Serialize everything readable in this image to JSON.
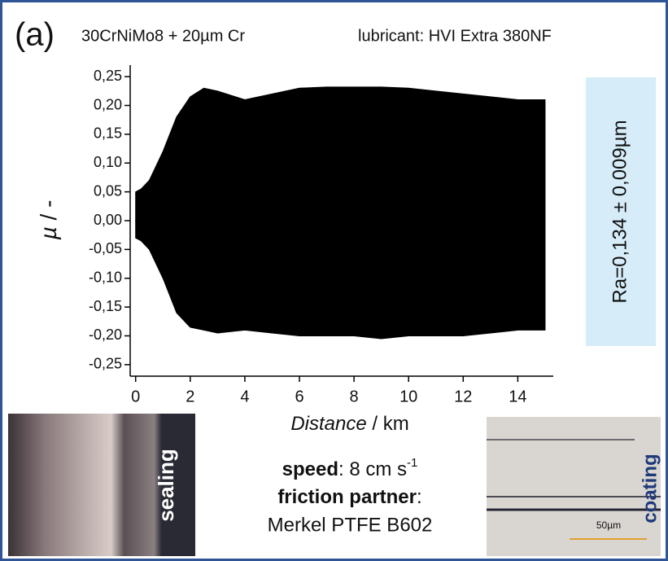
{
  "chart_data": {
    "type": "band",
    "panel_label": "(a)",
    "title": "30CrNiMo8 + 20µm Cr",
    "subtitle": "lubricant: HVI Extra 380NF",
    "x_label": {
      "italic": "Distance",
      "rest": " / km"
    },
    "y_label": {
      "italic": "µ",
      "rest": " / -"
    },
    "x": [
      0,
      0.2,
      0.5,
      1,
      1.5,
      2,
      2.5,
      3,
      4,
      5,
      6,
      7,
      8,
      9,
      10,
      11,
      12,
      13,
      14,
      15
    ],
    "y_upper": [
      0.05,
      0.055,
      0.07,
      0.12,
      0.18,
      0.215,
      0.23,
      0.225,
      0.21,
      0.22,
      0.23,
      0.232,
      0.232,
      0.232,
      0.23,
      0.225,
      0.22,
      0.215,
      0.21,
      0.21
    ],
    "y_lower": [
      -0.03,
      -0.035,
      -0.05,
      -0.1,
      -0.16,
      -0.185,
      -0.19,
      -0.195,
      -0.19,
      -0.195,
      -0.2,
      -0.2,
      -0.2,
      -0.205,
      -0.2,
      -0.2,
      -0.2,
      -0.195,
      -0.19,
      -0.19
    ],
    "color": "#000000",
    "xlim": [
      -0.2,
      15.3
    ],
    "ylim": [
      -0.27,
      0.27
    ],
    "xticks": [
      0,
      2,
      4,
      6,
      8,
      10,
      12,
      14
    ],
    "yticks": [
      {
        "value": -0.25,
        "label": "-0,25"
      },
      {
        "value": -0.2,
        "label": "-0,20"
      },
      {
        "value": -0.15,
        "label": "-0,15"
      },
      {
        "value": -0.1,
        "label": "-0,10"
      },
      {
        "value": -0.05,
        "label": "-0,05"
      },
      {
        "value": 0,
        "label": "0,00"
      },
      {
        "value": 0.05,
        "label": "0,05"
      },
      {
        "value": 0.1,
        "label": "0,10"
      },
      {
        "value": 0.15,
        "label": "0,15"
      },
      {
        "value": 0.2,
        "label": "0,20"
      },
      {
        "value": 0.25,
        "label": "0,25"
      }
    ],
    "roughness": "Ra=0,134 ± 0,009µm",
    "conditions": {
      "speed_label": "speed",
      "speed_value": ": 8 cm s",
      "speed_exponent": "-1",
      "partner_label": "friction partner",
      "partner_colon": ":",
      "partner_value": "Merkel PTFE B602"
    },
    "images": {
      "sealing": "sealing",
      "coating": "coating",
      "scale": "50µm"
    }
  }
}
